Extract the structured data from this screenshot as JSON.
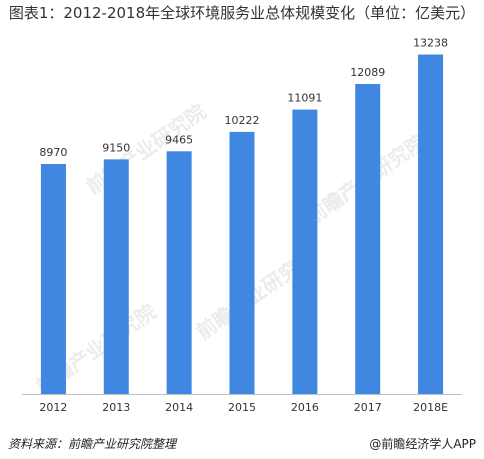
{
  "title": "图表1：2012-2018年全球环境服务业总体规模变化（单位：亿美元）",
  "watermark": "前瞻产业研究院",
  "footer": {
    "source": "资料来源：前瞻产业研究院整理",
    "brand": "@前瞻经济学人APP",
    "brand_icon": "at-icon"
  },
  "colors": {
    "bar": "#3f87e0",
    "text": "#333333"
  },
  "chart_data": {
    "type": "bar",
    "title": "图表1：2012-2018年全球环境服务业总体规模变化（单位：亿美元）",
    "categories": [
      "2012",
      "2013",
      "2014",
      "2015",
      "2016",
      "2017",
      "2018E"
    ],
    "values": [
      8970,
      9150,
      9465,
      10222,
      11091,
      12089,
      13238
    ],
    "xlabel": "",
    "ylabel": "",
    "ylim": [
      0,
      14000
    ],
    "data_labels": [
      "8970",
      "9150",
      "9465",
      "10222",
      "11091",
      "12089",
      "13238"
    ],
    "grid": false,
    "legend": "none"
  }
}
